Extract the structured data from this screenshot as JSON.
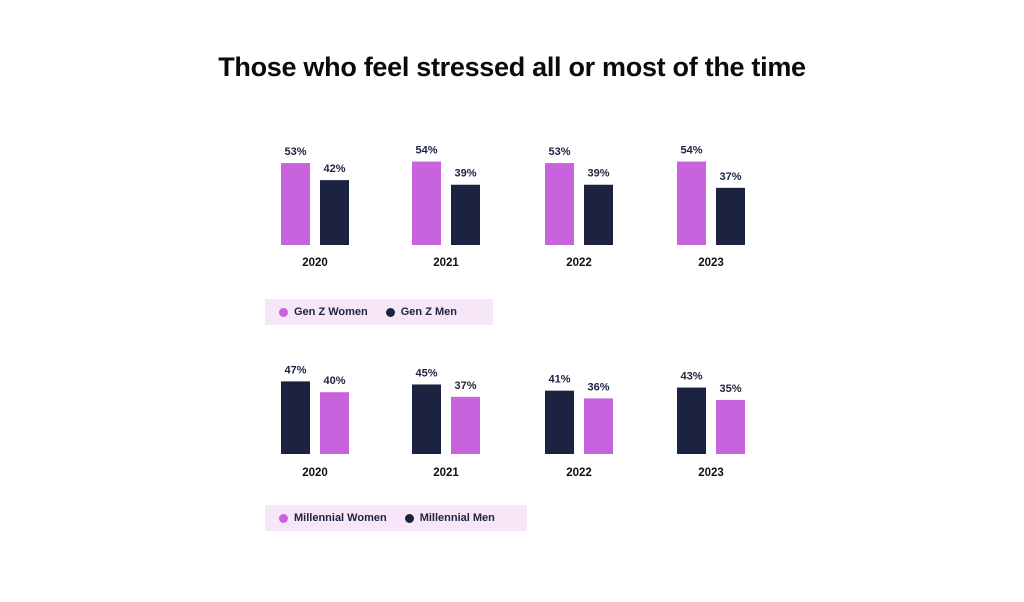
{
  "title": "Those who feel stressed all or most of the time",
  "colors": {
    "women": "#c863de",
    "men": "#1c2340",
    "legend_bg": "#f6e6f8"
  },
  "chart_data": [
    {
      "type": "bar",
      "title": "",
      "categories": [
        "2020",
        "2021",
        "2022",
        "2023"
      ],
      "series": [
        {
          "name": "Gen Z Women",
          "color": "#c863de",
          "values": [
            53,
            54,
            53,
            54
          ]
        },
        {
          "name": "Gen Z Men",
          "color": "#1c2340",
          "values": [
            42,
            39,
            39,
            37
          ]
        }
      ],
      "value_suffix": "%",
      "ylim": [
        0,
        100
      ],
      "grid": false,
      "legend": "bottom-left"
    },
    {
      "type": "bar",
      "title": "",
      "categories": [
        "2020",
        "2021",
        "2022",
        "2023"
      ],
      "series": [
        {
          "name": "Millennial Men",
          "color": "#1c2340",
          "values": [
            47,
            45,
            41,
            43
          ]
        },
        {
          "name": "Millennial Women",
          "color": "#c863de",
          "values": [
            40,
            37,
            36,
            35
          ]
        }
      ],
      "value_suffix": "%",
      "ylim": [
        0,
        100
      ],
      "grid": false,
      "legend": "bottom-left"
    }
  ],
  "legends": [
    {
      "items": [
        {
          "label": "Gen Z Women",
          "color": "#c863de"
        },
        {
          "label": "Gen Z Men",
          "color": "#1c2340"
        }
      ]
    },
    {
      "items": [
        {
          "label": "Millennial Women",
          "color": "#c863de"
        },
        {
          "label": "Millennial Men",
          "color": "#1c2340"
        }
      ]
    }
  ]
}
